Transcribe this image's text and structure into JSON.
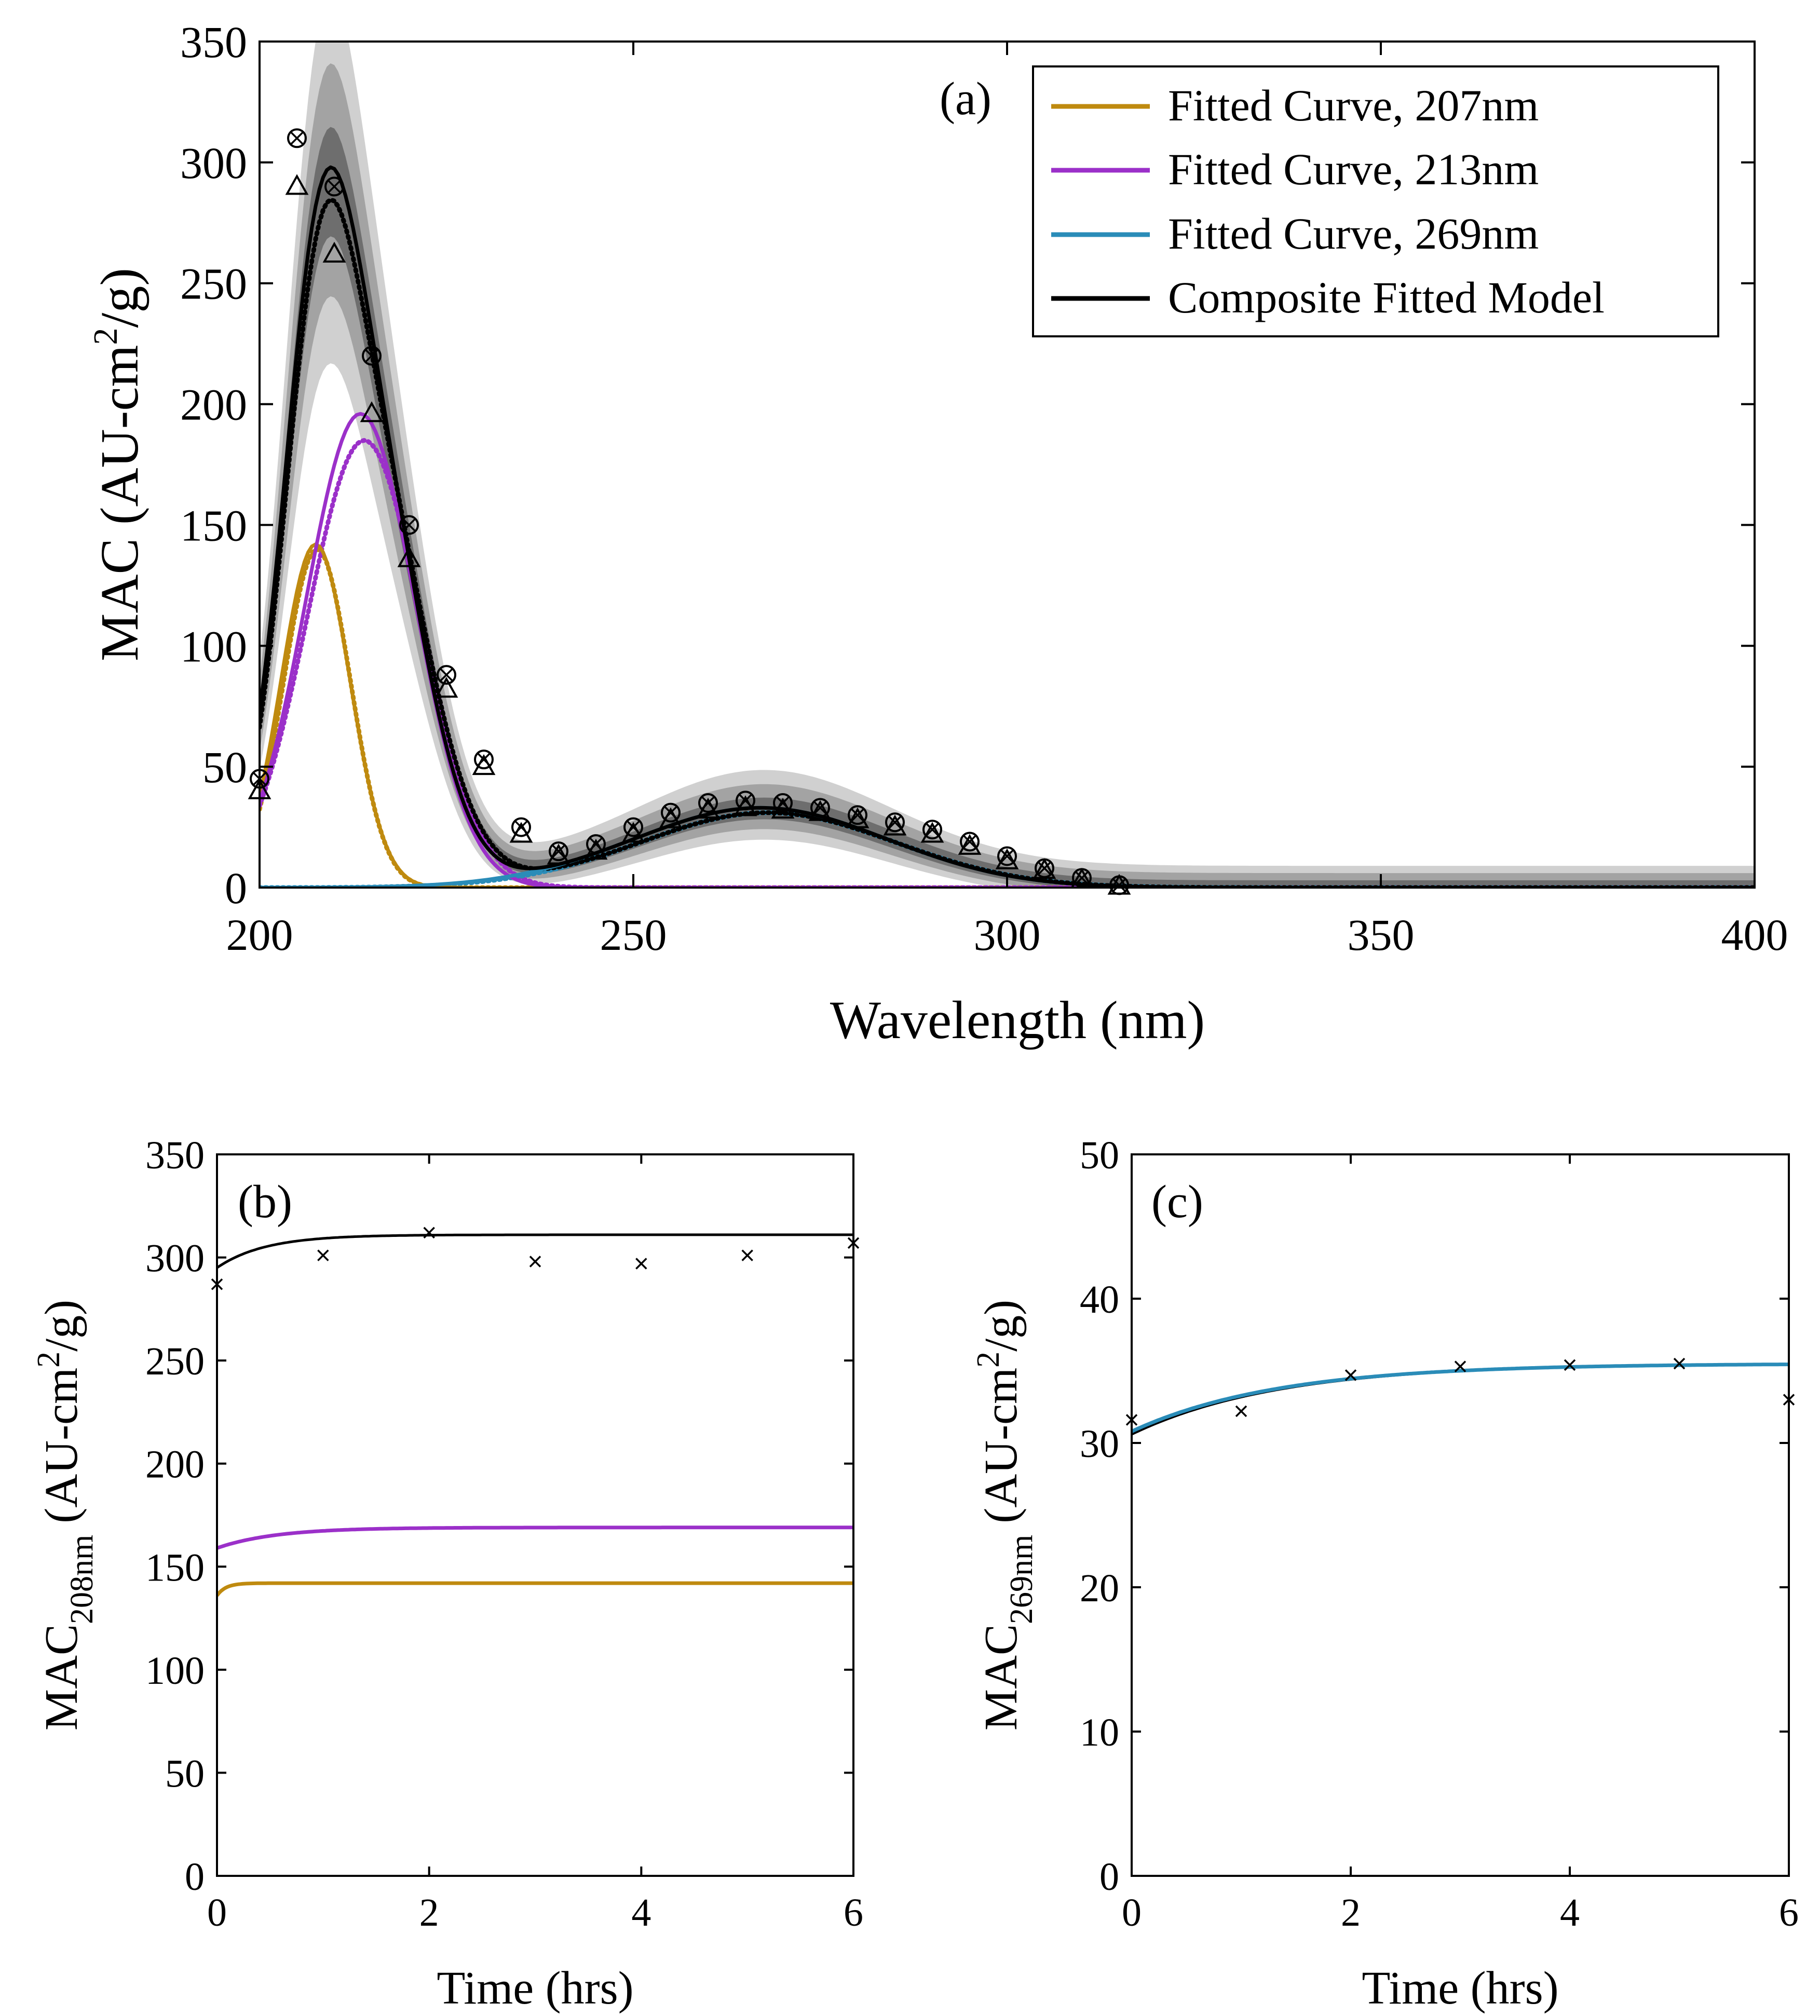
{
  "chart_data": [
    {
      "panel": "(a)",
      "type": "line",
      "xlabel": "Wavelength (nm)",
      "ylabel": "MAC (AU-cm",
      "ylabel_sup": "2",
      "ylabel_end": "/g)",
      "xlim": [
        200,
        400
      ],
      "ylim": [
        0,
        350
      ],
      "xticks": [
        200,
        250,
        300,
        350,
        400
      ],
      "yticks": [
        0,
        50,
        100,
        150,
        200,
        250,
        300,
        350
      ],
      "legend": [
        "Fitted Curve, 207nm",
        "Fitted Curve, 213nm",
        "Fitted Curve, 269nm",
        "Composite Fitted Model"
      ],
      "colors": {
        "g207": "#BF8A0F",
        "g213": "#9B30C9",
        "g269": "#2A8CB8",
        "composite": "#000000",
        "band_light": "#d0d0d0",
        "band_mid": "#a3a3a3",
        "band_dark": "#6e6e6e"
      },
      "gaussians_solid": [
        {
          "name": "Fitted Curve, 207nm",
          "amp": 142,
          "center": 207.5,
          "sigma": 4.6
        },
        {
          "name": "Fitted Curve, 213nm",
          "amp": 196,
          "center": 213.5,
          "sigma": 7.3
        },
        {
          "name": "Fitted Curve, 269nm",
          "amp": 33,
          "center": 267,
          "sigma": 17
        }
      ],
      "gaussians_dotted": [
        {
          "name": "Fitted Curve, 207nm",
          "amp": 140,
          "center": 207.7,
          "sigma": 4.5
        },
        {
          "name": "Fitted Curve, 213nm",
          "amp": 185,
          "center": 214,
          "sigma": 7.6
        },
        {
          "name": "Fitted Curve, 269nm",
          "amp": 31,
          "center": 268,
          "sigma": 17
        }
      ],
      "markers_circle_x": {
        "x": [
          200,
          205,
          210,
          215,
          220,
          225,
          230,
          235,
          240,
          245,
          250,
          255,
          260,
          265,
          270,
          275,
          280,
          285,
          290,
          295,
          300,
          305,
          310,
          315
        ],
        "y": [
          45,
          310,
          290,
          220,
          150,
          88,
          53,
          25,
          15,
          18,
          25,
          31,
          35,
          36,
          35,
          33,
          30,
          27,
          24,
          19,
          13,
          8,
          4,
          1
        ]
      },
      "markers_triangle": {
        "x": [
          200,
          205,
          210,
          215,
          220,
          225,
          230,
          235,
          240,
          245,
          250,
          255,
          260,
          265,
          270,
          275,
          280,
          285,
          290,
          295,
          300,
          305,
          310,
          315
        ],
        "y": [
          40,
          290,
          262,
          196,
          136,
          82,
          50,
          22,
          13,
          15,
          22,
          28,
          32,
          33,
          32,
          31,
          28,
          25,
          22,
          17,
          11,
          7,
          3,
          0.5
        ]
      }
    },
    {
      "panel": "(b)",
      "type": "line",
      "xlabel": "Time (hrs)",
      "ylabel": "MAC",
      "ylabel_sub": "208nm",
      "ylabel_unit": "(AU-cm",
      "ylabel_sup": "2",
      "ylabel_end": "/g)",
      "xlim": [
        0,
        6
      ],
      "ylim": [
        0,
        350
      ],
      "xticks": [
        0,
        2,
        4,
        6
      ],
      "yticks": [
        0,
        50,
        100,
        150,
        200,
        250,
        300,
        350
      ],
      "series": [
        {
          "name": "composite",
          "color": "#000000",
          "start": 295,
          "plateau": 311,
          "rate": 2.2
        },
        {
          "name": "213nm",
          "color": "#9B30C9",
          "start": 159,
          "plateau": 169,
          "rate": 1.8
        },
        {
          "name": "207nm",
          "color": "#BF8A0F",
          "start": 136,
          "plateau": 142,
          "rate": 12
        }
      ],
      "markers_x": {
        "x": [
          0,
          1,
          2,
          3,
          4,
          5,
          6
        ],
        "y": [
          287,
          301,
          312,
          298,
          297,
          301,
          307
        ]
      }
    },
    {
      "panel": "(c)",
      "type": "line",
      "xlabel": "Time (hrs)",
      "ylabel": "MAC",
      "ylabel_sub": "269nm",
      "ylabel_unit": "(AU-cm",
      "ylabel_sup": "2",
      "ylabel_end": "/g)",
      "xlim": [
        0,
        6
      ],
      "ylim": [
        0,
        50
      ],
      "xticks": [
        0,
        2,
        4,
        6
      ],
      "yticks": [
        0,
        10,
        20,
        30,
        40,
        50
      ],
      "series": [
        {
          "name": "composite",
          "color": "#000000",
          "start": 30.6,
          "plateau": 35.5,
          "rate": 0.75
        },
        {
          "name": "269nm",
          "color": "#2A8CB8",
          "start": 30.8,
          "plateau": 35.5,
          "rate": 0.75
        }
      ],
      "markers_x": {
        "x": [
          0,
          1,
          2,
          3,
          4,
          5,
          6
        ],
        "y": [
          31.6,
          32.2,
          34.7,
          35.3,
          35.4,
          35.5,
          33
        ]
      }
    }
  ]
}
